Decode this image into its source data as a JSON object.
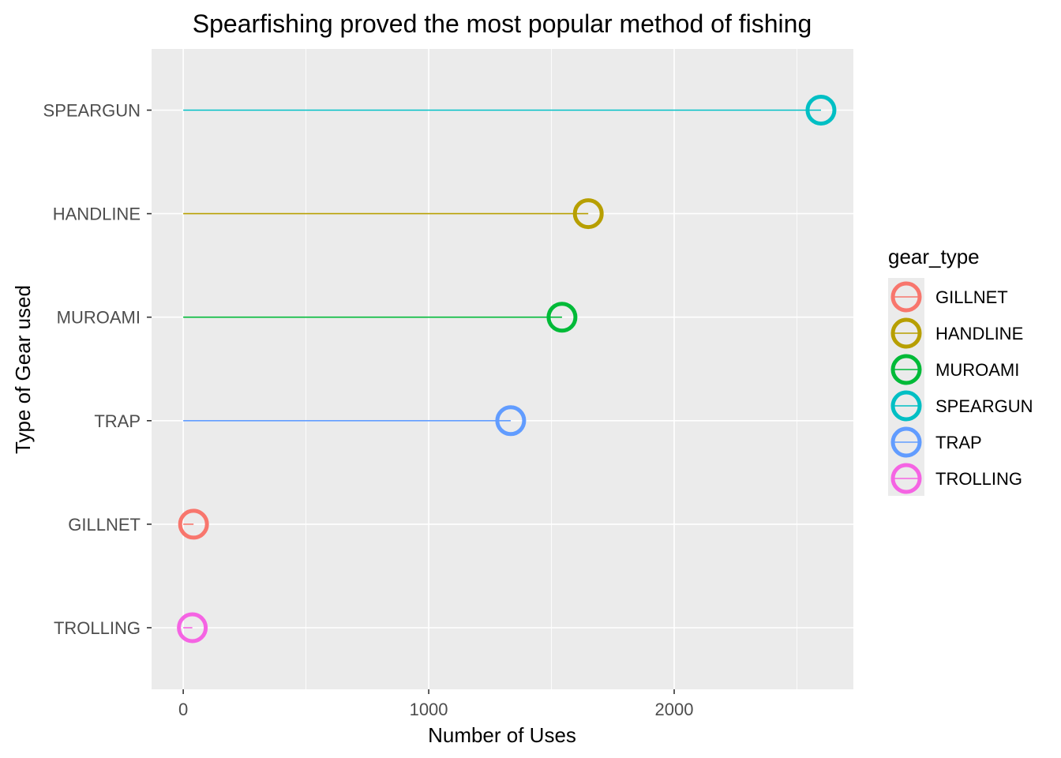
{
  "chart_data": {
    "type": "lollipop",
    "title": "Spearfishing proved the most popular method of fishing",
    "xlabel": "Number of Uses",
    "ylabel": "Type of Gear used",
    "xlim": [
      -129,
      2730
    ],
    "xticks": [
      0,
      1000,
      2000
    ],
    "xtick_labels": [
      "0",
      "1000",
      "2000"
    ],
    "grid": true,
    "categories": [
      "TROLLING",
      "GILLNET",
      "TRAP",
      "MUROAMI",
      "HANDLINE",
      "SPEARGUN"
    ],
    "values": [
      37,
      42,
      1334,
      1543,
      1650,
      2598
    ],
    "colors": [
      "#F564E3",
      "#F8766D",
      "#619CFF",
      "#00BA38",
      "#B79F00",
      "#00BFC4"
    ],
    "legend": {
      "title": "gear_type",
      "position": "right",
      "entries": [
        "GILLNET",
        "HANDLINE",
        "MUROAMI",
        "SPEARGUN",
        "TRAP",
        "TROLLING"
      ],
      "colors": [
        "#F8766D",
        "#B79F00",
        "#00BA38",
        "#00BFC4",
        "#619CFF",
        "#F564E3"
      ]
    }
  }
}
